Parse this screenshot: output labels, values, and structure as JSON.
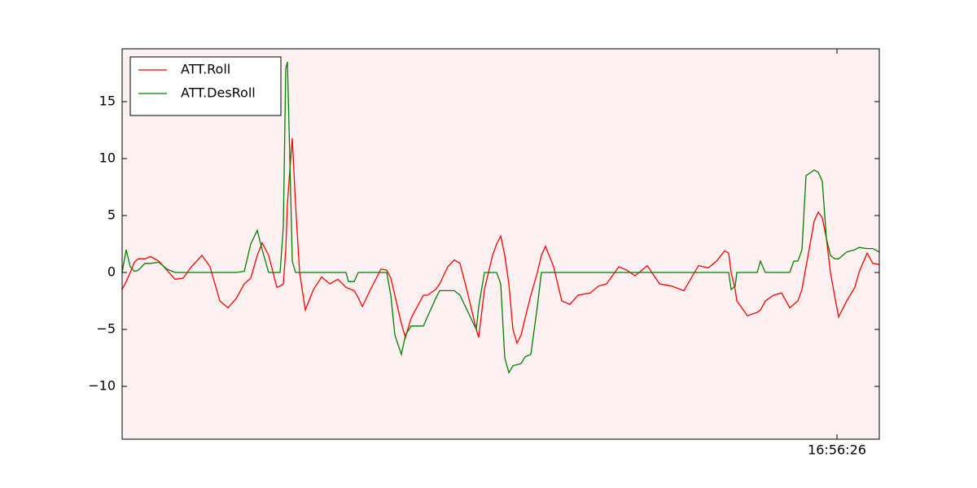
{
  "chart_data": {
    "type": "line",
    "x": [
      150,
      155,
      160,
      165,
      170,
      178,
      185,
      195,
      205,
      215,
      225,
      235,
      248,
      258,
      270,
      280,
      290,
      300,
      308,
      316,
      322,
      330,
      340,
      344,
      348,
      351,
      353,
      356,
      359,
      363,
      368,
      375,
      385,
      395,
      405,
      415,
      425,
      428,
      435,
      440,
      445,
      455,
      468,
      475,
      480,
      485,
      493,
      498,
      505,
      520,
      525,
      535,
      540,
      550,
      558,
      565,
      575,
      585,
      588,
      595,
      605,
      610,
      615,
      620,
      625,
      630,
      635,
      640,
      645,
      652,
      660,
      665,
      670,
      680,
      690,
      700,
      710,
      725,
      735,
      745,
      760,
      770,
      780,
      795,
      810,
      825,
      840,
      858,
      870,
      880,
      890,
      895,
      898,
      903,
      905,
      918,
      930,
      934,
      940,
      950,
      960,
      970,
      975,
      980,
      985,
      990,
      1000,
      1005,
      1010,
      1015,
      1020,
      1025,
      1030,
      1040,
      1050,
      1055,
      1065,
      1072,
      1080
    ],
    "series": [
      {
        "name": "ATT.Roll",
        "color": "#ff0000",
        "values": [
          -1.5,
          -0.8,
          0,
          0.9,
          1.2,
          1.2,
          1.4,
          1.0,
          0.2,
          -0.6,
          -0.5,
          0.5,
          1.5,
          0.5,
          -2.5,
          -3.1,
          -2.3,
          -1,
          -0.5,
          1.5,
          2.6,
          1.5,
          -1.3,
          -1.2,
          -1,
          2,
          6,
          9,
          11.8,
          6,
          0,
          -3.3,
          -1.5,
          -0.4,
          -1,
          -0.6,
          -1.3,
          -1.4,
          -1.6,
          -2.2,
          -3,
          -1.5,
          0.3,
          0.2,
          -0.5,
          -2,
          -4.5,
          -5.7,
          -4,
          -2,
          -2,
          -1.5,
          -1,
          0.5,
          1.1,
          0.8,
          -2,
          -5,
          -5.7,
          -1.5,
          1.5,
          2.5,
          3.2,
          1.5,
          -1,
          -5,
          -6.2,
          -5.5,
          -4,
          -2,
          0,
          1.5,
          2.3,
          0.5,
          -2.5,
          -2.8,
          -2,
          -1.8,
          -1.2,
          -1,
          0.5,
          0.2,
          -0.3,
          0.6,
          -1,
          -1.2,
          -1.6,
          0.6,
          0.4,
          1,
          1.9,
          1.7,
          0,
          -1.5,
          -2.5,
          -3.8,
          -3.5,
          -3.3,
          -2.5,
          -2,
          -1.8,
          -3.1,
          -2.8,
          -2.5,
          -1.5,
          0.5,
          4.5,
          5.3,
          4.8,
          3,
          0,
          -2,
          -3.9,
          -2.5,
          -1.3,
          0,
          1.7,
          0.8,
          0.7
        ]
      },
      {
        "name": "ATT.DesRoll",
        "color": "#008000",
        "values": [
          0,
          2,
          0.5,
          0.1,
          0.2,
          0.8,
          0.8,
          0.9,
          0.3,
          0,
          0,
          0,
          0,
          0,
          0,
          0,
          0,
          0.1,
          2.5,
          3.7,
          2,
          0,
          0,
          0,
          4,
          17.9,
          18.5,
          10,
          1,
          0,
          0,
          0,
          0,
          0,
          0,
          0,
          0,
          -0.8,
          -0.8,
          0,
          0,
          0,
          0,
          0,
          -2,
          -5.5,
          -7.2,
          -5.5,
          -4.7,
          -4.7,
          -3.9,
          -2.3,
          -1.6,
          -1.6,
          -1.6,
          -2,
          -3.5,
          -5,
          -3,
          0,
          0,
          0,
          -1,
          -7.5,
          -8.8,
          -8.2,
          -8.1,
          -8,
          -7.4,
          -7.2,
          -3,
          0,
          0,
          0,
          0,
          0,
          0,
          0,
          0,
          0,
          0,
          0,
          0,
          0,
          0,
          0,
          0,
          0,
          0,
          0,
          0,
          0,
          -1.5,
          -1.2,
          0,
          0,
          0,
          1,
          0,
          0,
          0,
          0,
          1,
          1,
          2,
          8.5,
          9,
          8.8,
          8,
          3,
          1.5,
          1.2,
          1.2,
          1.8,
          2,
          2.2,
          2.1,
          2.1,
          1.8
        ]
      }
    ],
    "xlim": [
      150,
      1080
    ],
    "xticks": [
      {
        "value": 1028,
        "label": "16:56:26"
      }
    ],
    "ylim": [
      -14.64,
      19.64
    ],
    "yticks": [
      {
        "value": -10,
        "label": "−10"
      },
      {
        "value": -5,
        "label": "−5"
      },
      0,
      5,
      10,
      15
    ],
    "legend": "upper left"
  }
}
